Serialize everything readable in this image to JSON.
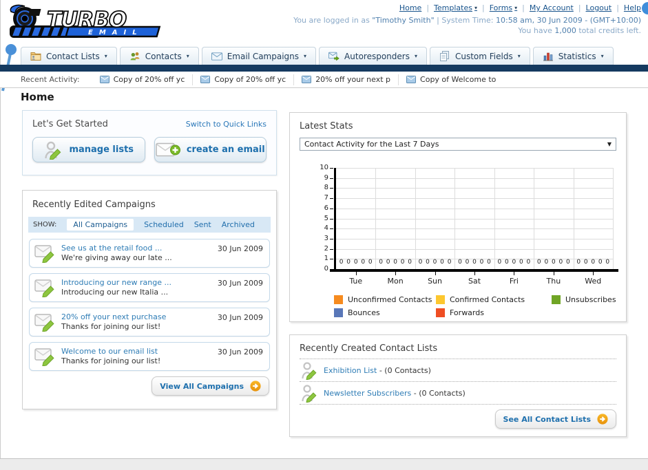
{
  "header": {
    "logo": {
      "title": "TURBO",
      "subtitle": "EMAIL"
    },
    "nav_links": [
      {
        "label": "Home",
        "dropdown": false
      },
      {
        "label": "Templates",
        "dropdown": true
      },
      {
        "label": "Forms",
        "dropdown": true
      },
      {
        "label": "My Account",
        "dropdown": false
      },
      {
        "label": "Logout",
        "dropdown": false
      },
      {
        "label": "Help",
        "dropdown": false
      }
    ],
    "login_prefix": "You are logged in as ",
    "login_name": "\"Timothy Smith\"",
    "login_mid": " | System Time: ",
    "login_time": "10:58 am, 30 Jun 2009 - (GMT+10:00)",
    "credits_prefix": "You have ",
    "credits_value": "1,000",
    "credits_suffix": " total credits left."
  },
  "nav_tabs": [
    {
      "label": "Contact Lists",
      "icon": "folder-icon"
    },
    {
      "label": "Contacts",
      "icon": "contacts-icon"
    },
    {
      "label": "Email Campaigns",
      "icon": "email-icon"
    },
    {
      "label": "Autoresponders",
      "icon": "autoresponder-icon"
    },
    {
      "label": "Custom Fields",
      "icon": "pages-icon"
    },
    {
      "label": "Statistics",
      "icon": "barchart-icon"
    }
  ],
  "recent_activity": {
    "label": "Recent Activity:",
    "items": [
      "Copy of 20% off yc",
      "Copy of 20% off yc",
      "20% off your next p",
      "Copy of Welcome to"
    ]
  },
  "page_title": "Home",
  "get_started": {
    "title": "Let's Get Started",
    "switch_link": "Switch to Quick Links",
    "buttons": [
      {
        "label": "manage lists",
        "icon": "manage-lists-icon"
      },
      {
        "label": "create an email",
        "icon": "create-email-icon"
      }
    ]
  },
  "campaigns": {
    "title": "Recently Edited Campaigns",
    "show_label": "SHOW:",
    "filters": [
      {
        "label": "All Campaigns",
        "active": true
      },
      {
        "label": "Scheduled",
        "active": false
      },
      {
        "label": "Sent",
        "active": false
      },
      {
        "label": "Archived",
        "active": false
      }
    ],
    "items": [
      {
        "title": "See us at the retail food ...",
        "subtitle": "We're giving away our late ...",
        "date": "30 Jun 2009"
      },
      {
        "title": "Introducing our new range ...",
        "subtitle": "Introducing our new Italia ...",
        "date": "30 Jun 2009"
      },
      {
        "title": "20% off your next purchase",
        "subtitle": "Thanks for joining our list!",
        "date": "30 Jun 2009"
      },
      {
        "title": "Welcome to our email list",
        "subtitle": "Thanks for joining our list!",
        "date": "30 Jun 2009"
      }
    ],
    "view_all_label": "View All Campaigns"
  },
  "stats": {
    "title": "Latest Stats",
    "dropdown_value": "Contact Activity for the Last 7 Days",
    "chart_data": {
      "type": "bar",
      "title": "Contact Activity for the Last 7 Days",
      "categories": [
        "Tue",
        "Mon",
        "Sun",
        "Sat",
        "Fri",
        "Thu",
        "Wed"
      ],
      "series": [
        {
          "name": "Unconfirmed Contacts",
          "color": "#F68B1F",
          "values": [
            0,
            0,
            0,
            0,
            0,
            0,
            0
          ]
        },
        {
          "name": "Confirmed Contacts",
          "color": "#FDC72F",
          "values": [
            0,
            0,
            0,
            0,
            0,
            0,
            0
          ]
        },
        {
          "name": "Unsubscribes",
          "color": "#70A525",
          "values": [
            0,
            0,
            0,
            0,
            0,
            0,
            0
          ]
        },
        {
          "name": "Bounces",
          "color": "#5977B8",
          "values": [
            0,
            0,
            0,
            0,
            0,
            0,
            0
          ]
        },
        {
          "name": "Forwards",
          "color": "#EF4E23",
          "values": [
            0,
            0,
            0,
            0,
            0,
            0,
            0
          ]
        }
      ],
      "ylim": [
        0,
        10
      ],
      "ytick_step": 1,
      "grid": true,
      "legend_position": "bottom"
    }
  },
  "contact_lists": {
    "title": "Recently Created Contact Lists",
    "items": [
      {
        "name": "Exhibition List",
        "detail": " - (0 Contacts)"
      },
      {
        "name": "Newsletter Subscribers",
        "detail": " - (0 Contacts)"
      }
    ],
    "see_all_label": "See All Contact Lists"
  }
}
